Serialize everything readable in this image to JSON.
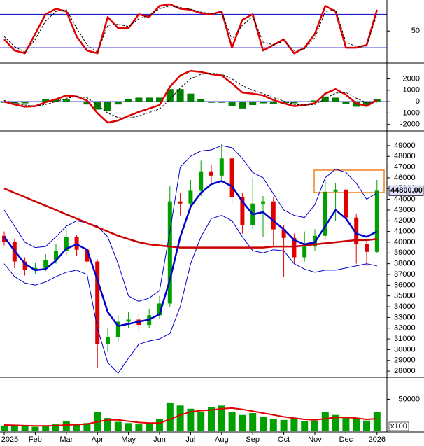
{
  "chart_data": [
    {
      "type": "line",
      "ylim": [
        -5,
        103
      ],
      "yticks": [
        50
      ],
      "levels": [
        80,
        20
      ],
      "level_color": "#0000cc",
      "series": [
        {
          "color": "#e00000",
          "width": 2.5,
          "values": [
            35,
            15,
            10,
            45,
            80,
            90,
            85,
            40,
            15,
            10,
            75,
            55,
            55,
            80,
            75,
            95,
            98,
            90,
            88,
            82,
            80,
            85,
            20,
            70,
            80,
            15,
            25,
            35,
            10,
            20,
            45,
            95,
            85,
            20,
            20,
            25,
            88
          ]
        },
        {
          "color": "#000000",
          "width": 1,
          "dash": true,
          "values": [
            40,
            22,
            12,
            35,
            68,
            85,
            88,
            55,
            25,
            12,
            60,
            62,
            58,
            72,
            78,
            90,
            95,
            92,
            89,
            84,
            81,
            83,
            35,
            60,
            76,
            30,
            25,
            32,
            15,
            18,
            38,
            85,
            88,
            30,
            22,
            23,
            80
          ]
        }
      ]
    },
    {
      "type": "line",
      "ylim": [
        -2450,
        3200
      ],
      "yticks": [
        -2000,
        -1000,
        0,
        1000,
        2000
      ],
      "levels": [
        0
      ],
      "level_color": "#0000cc",
      "series": [
        {
          "type": "bar",
          "color": "#008000",
          "values": [
            -100,
            -150,
            -150,
            0,
            200,
            200,
            250,
            0,
            -250,
            -700,
            -850,
            -250,
            200,
            350,
            350,
            350,
            1100,
            1100,
            700,
            200,
            -100,
            -100,
            -400,
            -600,
            -300,
            -150,
            -200,
            -200,
            -150,
            0,
            100,
            450,
            350,
            -200,
            -450,
            -300,
            200
          ]
        },
        {
          "color": "#e00000",
          "width": 2.5,
          "values": [
            0,
            -250,
            -450,
            -400,
            -50,
            200,
            550,
            450,
            100,
            -1000,
            -1850,
            -1650,
            -1250,
            -900,
            -600,
            -300,
            1300,
            2300,
            2700,
            2600,
            2400,
            2300,
            1600,
            800,
            700,
            550,
            150,
            -150,
            -400,
            -300,
            -150,
            700,
            1100,
            600,
            -150,
            -400,
            150
          ]
        },
        {
          "color": "#000000",
          "width": 1,
          "dash": true,
          "values": [
            100,
            -100,
            -300,
            -400,
            -250,
            0,
            300,
            450,
            350,
            -300,
            -1000,
            -1400,
            -1450,
            -1250,
            -950,
            -650,
            200,
            1200,
            2000,
            2400,
            2500,
            2400,
            2000,
            1400,
            1000,
            700,
            350,
            50,
            -250,
            -300,
            -250,
            250,
            750,
            800,
            300,
            -100,
            -50
          ]
        }
      ]
    },
    {
      "type": "candlestick",
      "ylim": [
        27550,
        50230
      ],
      "yticks": [
        28000,
        29000,
        30000,
        31000,
        32000,
        33000,
        34000,
        35000,
        36000,
        37000,
        38000,
        39000,
        40000,
        41000,
        42000,
        43000,
        44000,
        45000,
        46000,
        47000,
        48000,
        49000
      ],
      "up_color": "#00a000",
      "down_color": "#e00000",
      "open": [
        40600,
        40000,
        38200,
        37400,
        37600,
        38300,
        39200,
        40500,
        39300,
        38200,
        30500,
        31200,
        32600,
        32800,
        32300,
        33200,
        34300,
        43800,
        43600,
        44800,
        46600,
        46200,
        47800,
        44200,
        41600,
        43600,
        43800,
        41200,
        40400,
        38600,
        39600,
        40600,
        44700,
        44900,
        42300,
        39800,
        39100
      ],
      "high": [
        41000,
        40300,
        38600,
        38100,
        38900,
        39800,
        41200,
        40700,
        39500,
        38400,
        32000,
        33200,
        33500,
        33300,
        33800,
        35000,
        45200,
        44600,
        45800,
        47600,
        47200,
        49200,
        48000,
        44600,
        46000,
        44300,
        44200,
        41600,
        40800,
        41000,
        41200,
        45800,
        45500,
        45300,
        42600,
        40300,
        45800
      ],
      "low": [
        39700,
        37600,
        36900,
        37000,
        37300,
        38000,
        38800,
        38700,
        37600,
        28300,
        29800,
        30800,
        32000,
        31600,
        32000,
        32900,
        34000,
        42500,
        43000,
        44300,
        45500,
        45800,
        43600,
        40800,
        41200,
        40500,
        39600,
        36800,
        38100,
        38200,
        39200,
        40300,
        42000,
        41800,
        38000,
        37800,
        39000
      ],
      "close": [
        40000,
        38200,
        37400,
        37600,
        38300,
        39200,
        40500,
        39300,
        38200,
        30500,
        31200,
        32600,
        32800,
        32300,
        33200,
        34300,
        43800,
        43600,
        44800,
        46600,
        46200,
        47800,
        44200,
        41600,
        43600,
        43800,
        41200,
        40400,
        38600,
        39600,
        40600,
        44700,
        44900,
        42300,
        39800,
        39100,
        44800
      ],
      "last_label": "44800.00",
      "series": [
        {
          "color": "#0000cc",
          "width": 1,
          "values": [
            43000,
            41500,
            40000,
            39500,
            39600,
            40500,
            41500,
            42000,
            41800,
            41500,
            40500,
            38000,
            35000,
            34500,
            34800,
            35500,
            41000,
            47000,
            48000,
            48500,
            48600,
            49000,
            48800,
            47800,
            46500,
            46000,
            44500,
            43000,
            42500,
            42300,
            43500,
            46000,
            46800,
            46500,
            45500,
            44000,
            44600
          ]
        },
        {
          "color": "#0000cc",
          "width": 1,
          "values": [
            38000,
            36800,
            36200,
            36000,
            36300,
            36800,
            37200,
            37400,
            37000,
            32000,
            28800,
            27800,
            29200,
            30500,
            30800,
            31000,
            31500,
            34000,
            38000,
            40500,
            42200,
            42500,
            42000,
            40500,
            39200,
            39000,
            39300,
            39200,
            38000,
            37500,
            37200,
            37400,
            37400,
            37600,
            37800,
            38000,
            37800
          ]
        },
        {
          "color": "#cc0000",
          "width": 2.5,
          "values": [
            45000,
            44600,
            44200,
            43800,
            43400,
            43000,
            42600,
            42200,
            41800,
            41400,
            41000,
            40600,
            40300,
            40000,
            39800,
            39700,
            39600,
            39500,
            39500,
            39500,
            39500,
            39500,
            39500,
            39500,
            39500,
            39500,
            39600,
            39600,
            39600,
            39700,
            39800,
            39900,
            40000,
            40100,
            40200,
            40200,
            40300
          ]
        },
        {
          "color": "#0000cc",
          "width": 2.5,
          "values": [
            40500,
            39200,
            38000,
            37400,
            37500,
            38300,
            39400,
            39800,
            39300,
            36500,
            33500,
            32200,
            32400,
            32600,
            32800,
            33300,
            36500,
            40500,
            43300,
            44600,
            45400,
            45700,
            45200,
            43800,
            42600,
            42800,
            42000,
            41200,
            40200,
            39800,
            40000,
            41500,
            43000,
            42200,
            40800,
            40500,
            41000
          ]
        }
      ]
    },
    {
      "type": "bar",
      "ylim": [
        0,
        83000
      ],
      "yticks": [
        50000
      ],
      "unit_label": "x100",
      "categories": [
        "2025",
        null,
        null,
        "Feb",
        null,
        null,
        "Mar",
        null,
        null,
        "Apr",
        null,
        null,
        "May",
        null,
        null,
        "Jun",
        null,
        null,
        "Jul",
        null,
        null,
        "Aug",
        null,
        null,
        "Sep",
        null,
        null,
        "Oct",
        null,
        null,
        "Nov",
        null,
        null,
        "Dec",
        null,
        null,
        "2026"
      ],
      "series": [
        {
          "type": "bar",
          "color": "#00a000",
          "values": [
            8000,
            9000,
            7000,
            6000,
            8000,
            10000,
            15000,
            9000,
            12000,
            30000,
            20000,
            14000,
            12000,
            10000,
            11000,
            18000,
            45000,
            40000,
            35000,
            30000,
            38000,
            40000,
            30000,
            25000,
            28000,
            22000,
            18000,
            17000,
            20000,
            15000,
            16000,
            30000,
            25000,
            20000,
            18000,
            16000,
            30000
          ]
        },
        {
          "color": "#e00000",
          "width": 2,
          "values": [
            9000,
            8500,
            8000,
            7500,
            7500,
            8000,
            9000,
            9500,
            10500,
            14000,
            17000,
            17000,
            15000,
            13000,
            12000,
            12000,
            18000,
            25000,
            30000,
            32000,
            33000,
            35000,
            36000,
            34000,
            31000,
            28000,
            25000,
            22000,
            20000,
            18000,
            17000,
            19000,
            21000,
            21000,
            20000,
            18000,
            19000
          ]
        }
      ]
    }
  ]
}
